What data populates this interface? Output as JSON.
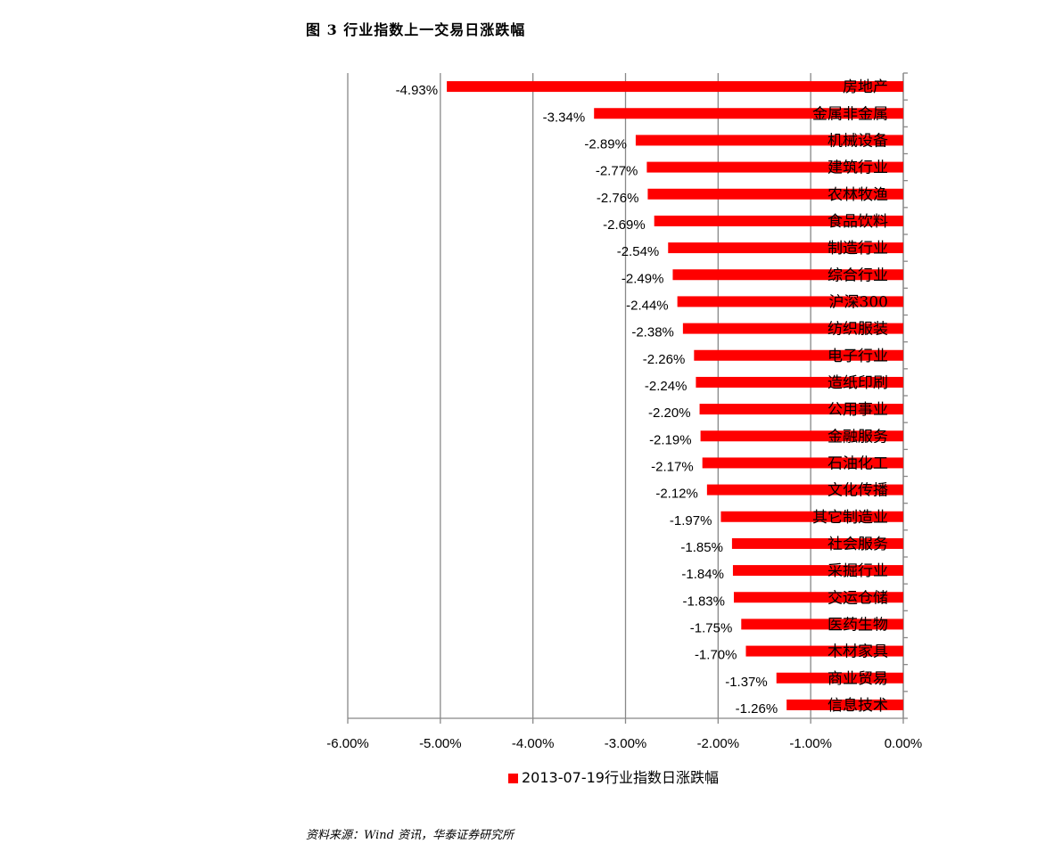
{
  "title": "图 3   行业指数上一交易日涨跌幅",
  "source": "资料来源：Wind 资讯，华泰证券研究所",
  "chart_data": {
    "type": "bar",
    "orientation": "horizontal",
    "categories": [
      "房地产",
      "金属非金属",
      "机械设备",
      "建筑行业",
      "农林牧渔",
      "食品饮料",
      "制造行业",
      "综合行业",
      "沪深300",
      "纺织服装",
      "电子行业",
      "造纸印刷",
      "公用事业",
      "金融服务",
      "石油化工",
      "文化传播",
      "其它制造业",
      "社会服务",
      "采掘行业",
      "交运仓储",
      "医药生物",
      "木材家具",
      "商业贸易",
      "信息技术"
    ],
    "series": [
      {
        "name": "2013-07-19行业指数日涨跌幅",
        "values": [
          -4.93,
          -3.34,
          -2.89,
          -2.77,
          -2.76,
          -2.69,
          -2.54,
          -2.49,
          -2.44,
          -2.38,
          -2.26,
          -2.24,
          -2.2,
          -2.19,
          -2.17,
          -2.12,
          -1.97,
          -1.85,
          -1.84,
          -1.83,
          -1.75,
          -1.7,
          -1.37,
          -1.26
        ],
        "data_labels": [
          "-4.93%",
          "-3.34%",
          "-2.89%",
          "-2.77%",
          "-2.76%",
          "-2.69%",
          "-2.54%",
          "-2.49%",
          "-2.44%",
          "-2.38%",
          "-2.26%",
          "-2.24%",
          "-2.20%",
          "-2.19%",
          "-2.17%",
          "-2.12%",
          "-1.97%",
          "-1.85%",
          "-1.84%",
          "-1.83%",
          "-1.75%",
          "-1.70%",
          "-1.37%",
          "-1.26%"
        ],
        "color": "#ff0000"
      }
    ],
    "xlim": [
      -6,
      0
    ],
    "x_ticks": [
      -6,
      -5,
      -4,
      -3,
      -2,
      -1,
      0
    ],
    "x_tick_labels": [
      "-6.00%",
      "-5.00%",
      "-4.00%",
      "-3.00%",
      "-2.00%",
      "-1.00%",
      "0.00%"
    ],
    "grid": "vertical",
    "legend": "bottom"
  }
}
